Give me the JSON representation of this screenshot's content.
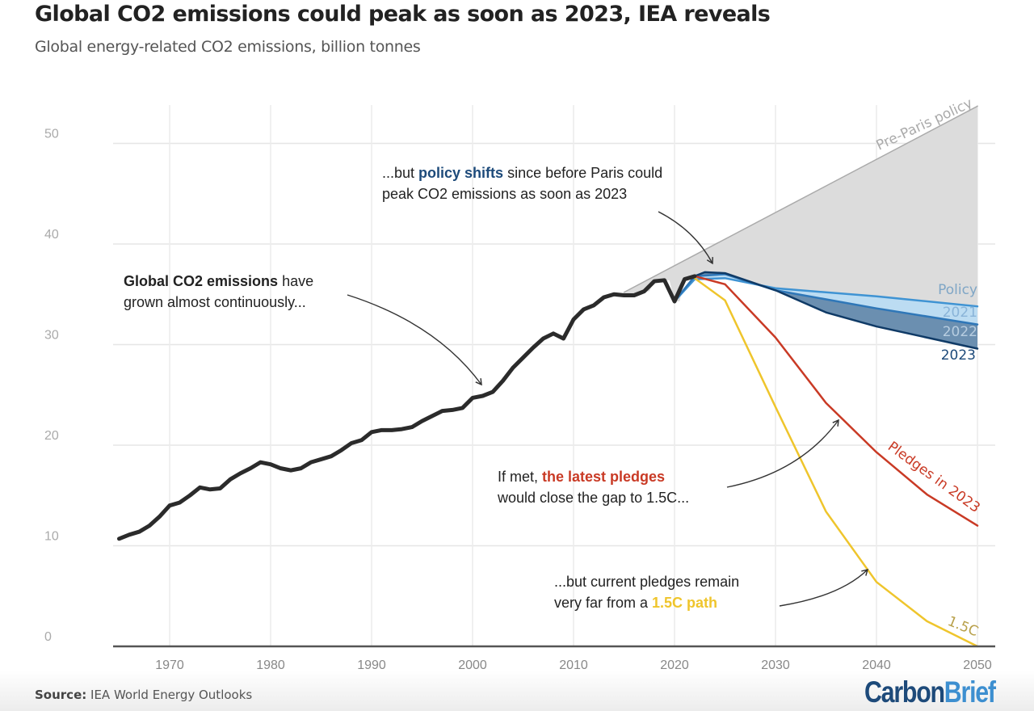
{
  "header": {
    "title": "Global CO2 emissions could peak as soon as 2023, IEA reveals",
    "subtitle": "Global energy-related CO2 emissions, billion tonnes"
  },
  "footer": {
    "source_label": "Source:",
    "source_text": "IEA World Energy Outlooks",
    "logo_part1": "Carbon",
    "logo_part2": "Brief"
  },
  "colors": {
    "historical": "#2b2b2b",
    "pre_paris_fill": "#dcdcdc",
    "pre_paris_line": "#aaaaaa",
    "policy_2021": "#3f93d3",
    "policy_2021_fill": "#bcdcf2",
    "policy_2022": "#2f77b8",
    "policy_2022_fill": "#6b8fb0",
    "policy_2023": "#0f3a66",
    "pledges": "#c93a25",
    "onepointfive": "#efc52c",
    "annotation_blue": "#1d4a7a",
    "annotation_red": "#c93a25",
    "annotation_yellow": "#efc52c"
  },
  "annotations": {
    "a1_bold": "Global CO2 emissions",
    "a1_rest": " have",
    "a1_line2": "grown almost continuously...",
    "a2_pre": "...but ",
    "a2_bold": "policy shifts",
    "a2_rest": " since before Paris could",
    "a2_line2": "peak CO2 emissions as soon as 2023",
    "a3_pre": "If met, ",
    "a3_bold": "the latest pledges",
    "a3_line2": "would close the gap to 1.5C...",
    "a4_line1": "...but current pledges remain",
    "a4_pre": "very far from a ",
    "a4_bold": "1.5C path"
  },
  "series_labels": {
    "pre_paris": "Pre-Paris policy",
    "policy": "Policy",
    "p2021": "2021",
    "p2022": "2022",
    "p2023": "2023",
    "pledges": "Pledges in 2023",
    "onepointfive": "1.5C"
  },
  "chart_data": {
    "type": "line",
    "title": "Global CO2 emissions could peak as soon as 2023, IEA reveals",
    "subtitle": "Global energy-related CO2 emissions, billion tonnes",
    "xlabel": "",
    "ylabel": "",
    "xlim": [
      1965,
      2050
    ],
    "ylim": [
      0,
      54
    ],
    "grid": true,
    "x_ticks": [
      "1970",
      "1980",
      "1990",
      "2000",
      "2010",
      "2020",
      "2030",
      "2040",
      "2050"
    ],
    "y_ticks": [
      "0",
      "10",
      "20",
      "30",
      "40",
      "50"
    ],
    "series": [
      {
        "name": "Historical",
        "x": [
          1965,
          1966,
          1967,
          1968,
          1969,
          1970,
          1971,
          1972,
          1973,
          1974,
          1975,
          1976,
          1977,
          1978,
          1979,
          1980,
          1981,
          1982,
          1983,
          1984,
          1985,
          1986,
          1987,
          1988,
          1989,
          1990,
          1991,
          1992,
          1993,
          1994,
          1995,
          1996,
          1997,
          1998,
          1999,
          2000,
          2001,
          2002,
          2003,
          2004,
          2005,
          2006,
          2007,
          2008,
          2009,
          2010,
          2011,
          2012,
          2013,
          2014,
          2015,
          2016,
          2017,
          2018,
          2019,
          2020,
          2021,
          2022
        ],
        "values": [
          10.7,
          11.1,
          11.4,
          12.0,
          12.9,
          14.0,
          14.3,
          15.0,
          15.8,
          15.6,
          15.7,
          16.6,
          17.2,
          17.7,
          18.3,
          18.1,
          17.7,
          17.5,
          17.7,
          18.3,
          18.6,
          18.9,
          19.5,
          20.2,
          20.5,
          21.3,
          21.5,
          21.5,
          21.6,
          21.8,
          22.4,
          22.9,
          23.4,
          23.5,
          23.7,
          24.7,
          24.9,
          25.3,
          26.4,
          27.7,
          28.7,
          29.7,
          30.6,
          31.1,
          30.6,
          32.5,
          33.5,
          33.9,
          34.7,
          35.0,
          34.9,
          34.9,
          35.3,
          36.3,
          36.4,
          34.3,
          36.5,
          36.8
        ]
      },
      {
        "name": "Pre-Paris policy",
        "x": [
          2015,
          2050
        ],
        "values": [
          35.2,
          53.7
        ]
      },
      {
        "name": "Policy 2021",
        "x": [
          2020,
          2022,
          2025,
          2030,
          2040,
          2050
        ],
        "values": [
          34.3,
          36.5,
          36.6,
          35.6,
          34.8,
          33.8
        ]
      },
      {
        "name": "Policy 2022",
        "x": [
          2020,
          2022,
          2025,
          2030,
          2040,
          2050
        ],
        "values": [
          34.3,
          36.8,
          37.0,
          35.4,
          33.6,
          32.0
        ]
      },
      {
        "name": "Policy 2023",
        "x": [
          2022,
          2023,
          2025,
          2030,
          2035,
          2040,
          2050
        ],
        "values": [
          36.8,
          37.2,
          37.1,
          35.4,
          33.2,
          31.8,
          29.6
        ]
      },
      {
        "name": "Pledges in 2023",
        "x": [
          2022,
          2025,
          2030,
          2035,
          2040,
          2045,
          2050
        ],
        "values": [
          36.8,
          36.0,
          30.7,
          24.2,
          19.3,
          15.1,
          12.0
        ]
      },
      {
        "name": "1.5C",
        "x": [
          2022,
          2025,
          2030,
          2035,
          2040,
          2045,
          2050
        ],
        "values": [
          36.6,
          34.4,
          23.8,
          13.4,
          6.4,
          2.5,
          0.0
        ]
      }
    ]
  }
}
